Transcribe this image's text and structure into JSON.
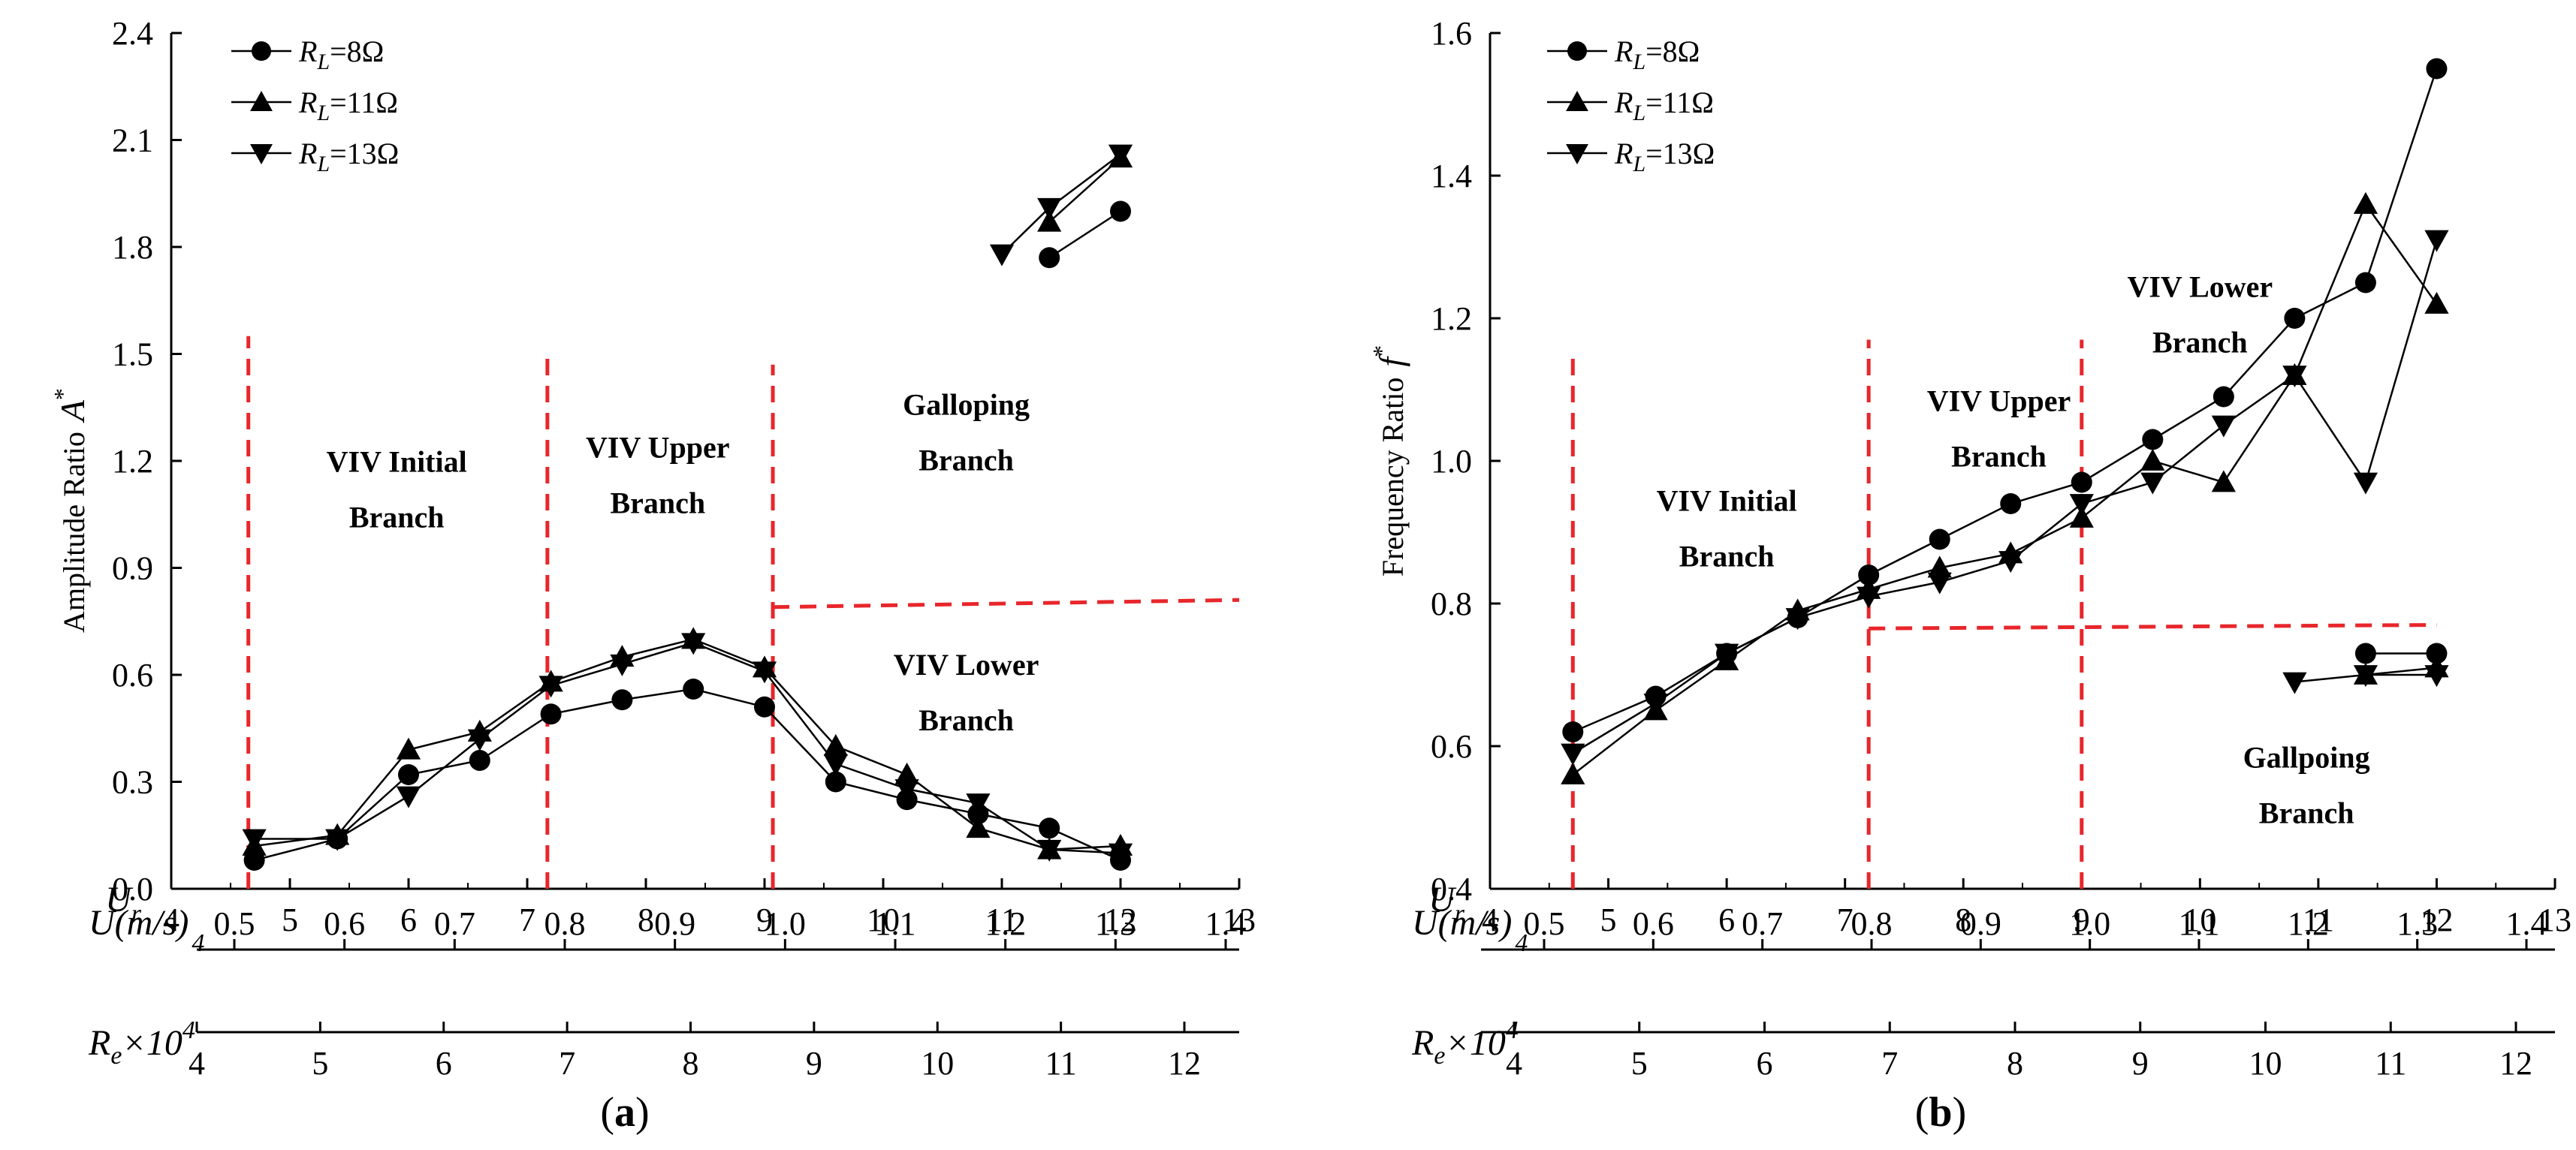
{
  "figure": {
    "panel_labels": [
      "a",
      "b"
    ]
  },
  "chart_data": [
    {
      "type": "line",
      "panel": "a",
      "xlabel": "U_r",
      "ylabel": "Amplitude Ratio A*",
      "ylabel_text": "Amplitude Ratio",
      "ylabel_symbol": "A",
      "ylabel_sup": "*",
      "xlim": [
        4,
        13
      ],
      "ylim": [
        0,
        2.4
      ],
      "x_ticks": [
        4,
        5,
        6,
        7,
        8,
        9,
        10,
        11,
        12,
        13
      ],
      "y_ticks": [
        "0.0",
        "0.3",
        "0.6",
        "0.9",
        "1.2",
        "1.5",
        "1.8",
        "2.1",
        "2.4"
      ],
      "secondary_axes": [
        {
          "name": "U(m/s)",
          "name_base": "U(m/s)",
          "name_sub": "",
          "name_sup": "4",
          "ticks": [
            "0.5",
            "0.6",
            "0.7",
            "0.8",
            "0.9",
            "1.0",
            "1.1",
            "1.2",
            "1.3",
            "1.4"
          ]
        },
        {
          "name": "Re×10^4",
          "name_base": "R",
          "name_sub": "e",
          "name_mid": "×10",
          "name_sup": "4",
          "ticks": [
            "4",
            "5",
            "6",
            "7",
            "8",
            "9",
            "10",
            "11",
            "12"
          ]
        }
      ],
      "legend": [
        {
          "label": "RL=8Ω",
          "main": "R",
          "sub": "L",
          "rest": "=8Ω",
          "marker": "circle"
        },
        {
          "label": "RL=11Ω",
          "main": "R",
          "sub": "L",
          "rest": "=11Ω",
          "marker": "triangle-up"
        },
        {
          "label": "RL=13Ω",
          "main": "R",
          "sub": "L",
          "rest": "=13Ω",
          "marker": "triangle-down"
        }
      ],
      "series": [
        {
          "name": "RL=8Ω",
          "marker": "circle",
          "segments": [
            [
              [
                4.7,
                0.08
              ],
              [
                5.4,
                0.14
              ],
              [
                6.0,
                0.32
              ],
              [
                6.6,
                0.36
              ],
              [
                7.2,
                0.49
              ],
              [
                7.8,
                0.53
              ],
              [
                8.4,
                0.56
              ],
              [
                9.0,
                0.51
              ],
              [
                9.6,
                0.3
              ],
              [
                10.2,
                0.25
              ],
              [
                10.8,
                0.21
              ],
              [
                11.4,
                0.17
              ],
              [
                12.0,
                0.08
              ]
            ],
            [
              [
                11.4,
                1.77
              ],
              [
                12.0,
                1.9
              ]
            ]
          ]
        },
        {
          "name": "RL=11Ω",
          "marker": "triangle-up",
          "segments": [
            [
              [
                4.7,
                0.12
              ],
              [
                5.4,
                0.15
              ],
              [
                6.0,
                0.39
              ],
              [
                6.6,
                0.44
              ],
              [
                7.2,
                0.58
              ],
              [
                7.8,
                0.65
              ],
              [
                8.4,
                0.7
              ],
              [
                9.0,
                0.62
              ],
              [
                9.6,
                0.4
              ],
              [
                10.2,
                0.32
              ],
              [
                10.8,
                0.17
              ],
              [
                11.4,
                0.11
              ],
              [
                12.0,
                0.12
              ]
            ],
            [
              [
                11.4,
                1.87
              ],
              [
                12.0,
                2.05
              ]
            ]
          ]
        },
        {
          "name": "RL=13Ω",
          "marker": "triangle-down",
          "segments": [
            [
              [
                4.7,
                0.14
              ],
              [
                5.4,
                0.14
              ],
              [
                6.0,
                0.26
              ],
              [
                6.6,
                0.42
              ],
              [
                7.2,
                0.57
              ],
              [
                7.8,
                0.63
              ],
              [
                8.4,
                0.69
              ],
              [
                9.0,
                0.61
              ],
              [
                9.6,
                0.35
              ],
              [
                10.2,
                0.28
              ],
              [
                10.8,
                0.24
              ],
              [
                11.4,
                0.11
              ],
              [
                12.0,
                0.1
              ]
            ],
            [
              [
                11.0,
                1.78
              ],
              [
                11.4,
                1.91
              ],
              [
                12.0,
                2.06
              ]
            ]
          ]
        }
      ],
      "region_labels": [
        {
          "lines": [
            "VIV Initial",
            "Branch"
          ],
          "x": 5.9,
          "y": 1.17
        },
        {
          "lines": [
            "VIV Upper",
            "Branch"
          ],
          "x": 8.1,
          "y": 1.21
        },
        {
          "lines": [
            "Galloping",
            "Branch"
          ],
          "x": 10.7,
          "y": 1.33
        },
        {
          "lines": [
            "VIV Lower",
            "Branch"
          ],
          "x": 10.7,
          "y": 0.6
        }
      ],
      "boundaries": {
        "vertical": [
          {
            "x": 4.65,
            "y_from": 0,
            "y_to": 1.55
          },
          {
            "x": 7.17,
            "y_from": 0,
            "y_to": 1.5
          },
          {
            "x": 9.07,
            "y_from": 0,
            "y_to": 1.47
          }
        ],
        "horizontal": [
          {
            "x_from": 9.07,
            "x_to": 13,
            "y_from": 0.79,
            "y_to": 0.81
          }
        ]
      }
    },
    {
      "type": "line",
      "panel": "b",
      "xlabel": "U_r",
      "ylabel": "Frequency Ratio f*",
      "ylabel_text": "Frequency Ratio",
      "ylabel_symbol": "f",
      "ylabel_sup": "*",
      "xlim": [
        4,
        13
      ],
      "ylim": [
        0.4,
        1.6
      ],
      "x_ticks": [
        4,
        5,
        6,
        7,
        8,
        9,
        10,
        11,
        12,
        13
      ],
      "y_ticks": [
        "0.4",
        "0.6",
        "0.8",
        "1.0",
        "1.2",
        "1.4",
        "1.6"
      ],
      "secondary_axes": [
        {
          "name": "U(m/s)",
          "name_base": "U(m/s)",
          "name_sub": "",
          "name_sup": "4",
          "ticks": [
            "0.5",
            "0.6",
            "0.7",
            "0.8",
            "0.9",
            "1.0",
            "1.1",
            "1.2",
            "1.3",
            "1.4"
          ]
        },
        {
          "name": "Re×10^4",
          "name_base": "R",
          "name_sub": "e",
          "name_mid": "×10",
          "name_sup": "4",
          "ticks": [
            "4",
            "5",
            "6",
            "7",
            "8",
            "9",
            "10",
            "11",
            "12"
          ]
        }
      ],
      "legend": [
        {
          "label": "RL=8Ω",
          "main": "R",
          "sub": "L",
          "rest": "=8Ω",
          "marker": "circle"
        },
        {
          "label": "RL=11Ω",
          "main": "R",
          "sub": "L",
          "rest": "=11Ω",
          "marker": "triangle-up"
        },
        {
          "label": "RL=13Ω",
          "main": "R",
          "sub": "L",
          "rest": "=13Ω",
          "marker": "triangle-down"
        }
      ],
      "series": [
        {
          "name": "RL=8Ω",
          "marker": "circle",
          "segments": [
            [
              [
                4.7,
                0.62
              ],
              [
                5.4,
                0.67
              ],
              [
                6.0,
                0.73
              ],
              [
                6.6,
                0.78
              ],
              [
                7.2,
                0.84
              ],
              [
                7.8,
                0.89
              ],
              [
                8.4,
                0.94
              ],
              [
                9.0,
                0.97
              ],
              [
                9.6,
                1.03
              ],
              [
                10.2,
                1.09
              ],
              [
                10.8,
                1.2
              ],
              [
                11.4,
                1.25
              ],
              [
                12.0,
                1.55
              ]
            ],
            [
              [
                11.4,
                0.73
              ],
              [
                12.0,
                0.73
              ]
            ]
          ]
        },
        {
          "name": "RL=11Ω",
          "marker": "triangle-up",
          "segments": [
            [
              [
                4.7,
                0.56
              ],
              [
                5.4,
                0.65
              ],
              [
                6.0,
                0.72
              ],
              [
                6.6,
                0.79
              ],
              [
                7.2,
                0.82
              ],
              [
                7.8,
                0.85
              ],
              [
                8.4,
                0.87
              ],
              [
                9.0,
                0.92
              ],
              [
                9.6,
                1.0
              ],
              [
                10.2,
                0.97
              ],
              [
                10.8,
                1.12
              ],
              [
                11.4,
                1.36
              ],
              [
                12.0,
                1.22
              ]
            ],
            [
              [
                11.4,
                0.7
              ],
              [
                12.0,
                0.71
              ]
            ]
          ]
        },
        {
          "name": "RL=13Ω",
          "marker": "triangle-down",
          "segments": [
            [
              [
                4.7,
                0.59
              ],
              [
                5.4,
                0.66
              ],
              [
                6.0,
                0.73
              ],
              [
                6.6,
                0.78
              ],
              [
                7.2,
                0.81
              ],
              [
                7.8,
                0.83
              ],
              [
                8.4,
                0.86
              ],
              [
                9.0,
                0.94
              ],
              [
                9.6,
                0.97
              ],
              [
                10.2,
                1.05
              ],
              [
                10.8,
                1.12
              ],
              [
                11.4,
                0.97
              ],
              [
                12.0,
                1.31
              ]
            ],
            [
              [
                10.8,
                0.69
              ],
              [
                11.4,
                0.7
              ],
              [
                12.0,
                0.7
              ]
            ]
          ]
        }
      ],
      "region_labels": [
        {
          "lines": [
            "VIV Initial",
            "Branch"
          ],
          "x": 6.0,
          "y": 0.93
        },
        {
          "lines": [
            "VIV Upper",
            "Branch"
          ],
          "x": 8.3,
          "y": 1.07
        },
        {
          "lines": [
            "VIV Lower",
            "Branch"
          ],
          "x": 10.0,
          "y": 1.23
        },
        {
          "lines": [
            "Gallpoing",
            "Branch"
          ],
          "x": 10.9,
          "y": 0.57
        }
      ],
      "boundaries": {
        "vertical": [
          {
            "x": 4.7,
            "y_from": 0.4,
            "y_to": 1.15
          },
          {
            "x": 7.2,
            "y_from": 0.4,
            "y_to": 1.17
          },
          {
            "x": 9.0,
            "y_from": 0.4,
            "y_to": 1.17
          }
        ],
        "horizontal": [
          {
            "x_from": 7.2,
            "x_to": 12.0,
            "y_from": 0.765,
            "y_to": 0.77
          }
        ]
      }
    }
  ]
}
